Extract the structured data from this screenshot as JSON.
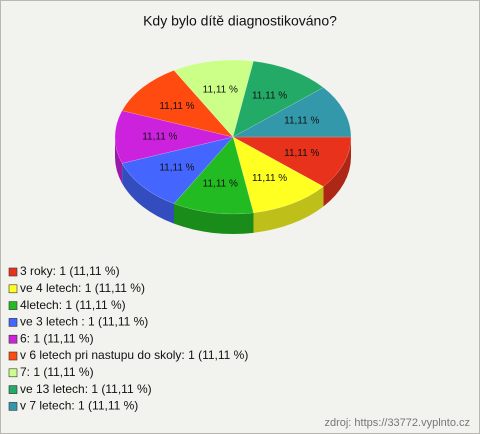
{
  "chart_data": {
    "type": "pie",
    "title": "Kdy bylo dítě diagnostikováno?",
    "categories": [
      "3 roky: 1 (11,11 %)",
      "ve 4 letech: 1 (11,11 %)",
      "4letech: 1 (11,11 %)",
      "ve 3 letech : 1 (11,11 %)",
      "6: 1 (11,11 %)",
      "v 6 letech pri nastupu do skoly: 1 (11,11 %)",
      "7: 1 (11,11 %)",
      "ve 13 letech: 1 (11,11 %)",
      "v 7 letech: 1 (11,11 %)"
    ],
    "values": [
      11.11,
      11.11,
      11.11,
      11.11,
      11.11,
      11.11,
      11.11,
      11.11,
      11.11
    ],
    "value_labels": [
      "11,11 %",
      "11,11 %",
      "11,11 %",
      "11,11 %",
      "11,11 %",
      "11,11 %",
      "11,11 %",
      "11,11 %",
      "11,11 %"
    ],
    "colors": [
      "#e8321c",
      "#ffff22",
      "#22bb22",
      "#4466ff",
      "#cc22dd",
      "#ff4a10",
      "#ccff88",
      "#22aa66",
      "#3399aa"
    ],
    "source": "zdroj: https://33772.vyplnto.cz"
  }
}
